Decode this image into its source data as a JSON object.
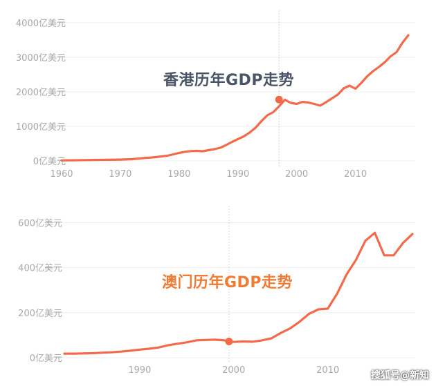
{
  "chart_data": [
    {
      "type": "line",
      "title": "香港历年GDP走势",
      "y_unit_suffix": "亿美元",
      "y_ticks": [
        0,
        1000,
        2000,
        3000,
        4000
      ],
      "y_tick_labels": [
        "0亿美元",
        "1000亿美元",
        "2000亿美元",
        "3000亿美元",
        "4000亿美元"
      ],
      "x_ticks": [
        1960,
        1970,
        1980,
        1990,
        2000,
        2010
      ],
      "x_tick_labels": [
        "1960",
        "1970",
        "1980",
        "1990",
        "2000",
        "2010"
      ],
      "xlim": [
        1960,
        2019
      ],
      "ylim": [
        0,
        4000
      ],
      "grid": true,
      "highlight": {
        "x": 1997,
        "y": 1775
      },
      "color": "#f26a4a",
      "x": [
        1960,
        1962,
        1964,
        1966,
        1968,
        1970,
        1972,
        1974,
        1975,
        1976,
        1978,
        1980,
        1981,
        1982,
        1983,
        1984,
        1985,
        1986,
        1987,
        1988,
        1989,
        1990,
        1991,
        1992,
        1993,
        1994,
        1995,
        1996,
        1997,
        1998,
        1999,
        2000,
        2001,
        2002,
        2003,
        2004,
        2005,
        2006,
        2007,
        2008,
        2009,
        2010,
        2011,
        2012,
        2013,
        2014,
        2015,
        2016,
        2017,
        2018,
        2019
      ],
      "y": [
        13,
        18,
        25,
        30,
        32,
        38,
        50,
        82,
        95,
        110,
        150,
        230,
        265,
        285,
        290,
        280,
        310,
        340,
        380,
        460,
        550,
        630,
        710,
        820,
        960,
        1150,
        1320,
        1410,
        1580,
        1770,
        1680,
        1650,
        1710,
        1690,
        1650,
        1600,
        1700,
        1810,
        1920,
        2100,
        2180,
        2090,
        2260,
        2450,
        2600,
        2720,
        2860,
        3030,
        3150,
        3420,
        3640
      ]
    },
    {
      "type": "line",
      "title": "澳门历年GDP走势",
      "y_unit_suffix": "亿美元",
      "y_ticks": [
        0,
        200,
        400,
        600
      ],
      "y_tick_labels": [
        "0亿美元",
        "200亿美元",
        "400亿美元",
        "600亿美元"
      ],
      "x_ticks": [
        1990,
        2000,
        2010
      ],
      "x_tick_labels": [
        "1990",
        "2000",
        "2010"
      ],
      "xlim": [
        1982,
        2019
      ],
      "ylim": [
        0,
        620
      ],
      "grid": true,
      "highlight": {
        "x": 1999.5,
        "y": 72
      },
      "color": "#f26a4a",
      "x": [
        1982,
        1983,
        1984,
        1985,
        1986,
        1987,
        1988,
        1989,
        1990,
        1991,
        1992,
        1993,
        1994,
        1995,
        1996,
        1997,
        1998,
        1999,
        2000,
        2001,
        2002,
        2003,
        2004,
        2005,
        2006,
        2007,
        2008,
        2009,
        2010,
        2011,
        2012,
        2013,
        2014,
        2015,
        2016,
        2017,
        2018,
        2019
      ],
      "y": [
        18,
        18,
        19,
        20,
        22,
        24,
        27,
        31,
        36,
        40,
        45,
        55,
        62,
        68,
        77,
        79,
        80,
        77,
        70,
        72,
        71,
        77,
        86,
        110,
        130,
        160,
        195,
        215,
        218,
        285,
        370,
        435,
        520,
        555,
        455,
        455,
        510,
        550
      ]
    }
  ],
  "watermark": "搜狐号@新知"
}
